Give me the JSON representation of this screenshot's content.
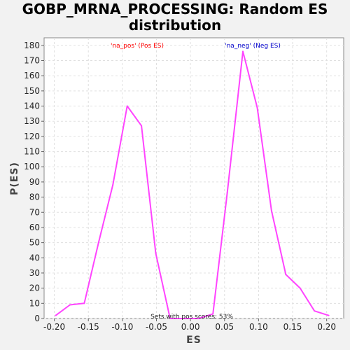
{
  "chart_data": {
    "type": "line",
    "title_line1": "GOBP_MRNA_PROCESSING: Random ES",
    "title_line2": "distribution",
    "xlabel": "ES",
    "ylabel": "P(ES)",
    "xlim": [
      -0.215,
      0.225
    ],
    "ylim": [
      0,
      185
    ],
    "x_ticks": [
      -0.2,
      -0.15,
      -0.1,
      -0.05,
      0.0,
      0.05,
      0.1,
      0.15,
      0.2
    ],
    "x_tick_labels": [
      "-0.20",
      "-0.15",
      "-0.10",
      "-0.05",
      "0.00",
      "0.05",
      "0.10",
      "0.15",
      "0.20"
    ],
    "y_ticks": [
      0,
      10,
      20,
      30,
      40,
      50,
      60,
      70,
      80,
      90,
      100,
      110,
      120,
      130,
      140,
      150,
      160,
      170,
      180
    ],
    "grid": true,
    "series": [
      {
        "color": "#ff44ff",
        "x": [
          -0.198,
          -0.177,
          -0.156,
          -0.135,
          -0.114,
          -0.093,
          -0.072,
          -0.051,
          -0.03,
          -0.009,
          0.012,
          0.033,
          0.054,
          0.077,
          0.098,
          0.119,
          0.14,
          0.161,
          0.182,
          0.203
        ],
        "y": [
          2,
          9,
          10,
          50,
          88,
          140,
          127,
          43,
          0,
          0,
          0,
          3,
          83,
          176,
          139,
          71,
          29,
          20,
          5,
          2
        ]
      }
    ],
    "annotations": {
      "pos_label": "'na_pos' (Pos ES)",
      "neg_label": "'na_neg' (Neg ES)",
      "footer": "Sets with pos scores: 53%"
    },
    "colors": {
      "pos": "#ff0000",
      "neg": "#0000cc",
      "line": "#ff44ff"
    }
  }
}
